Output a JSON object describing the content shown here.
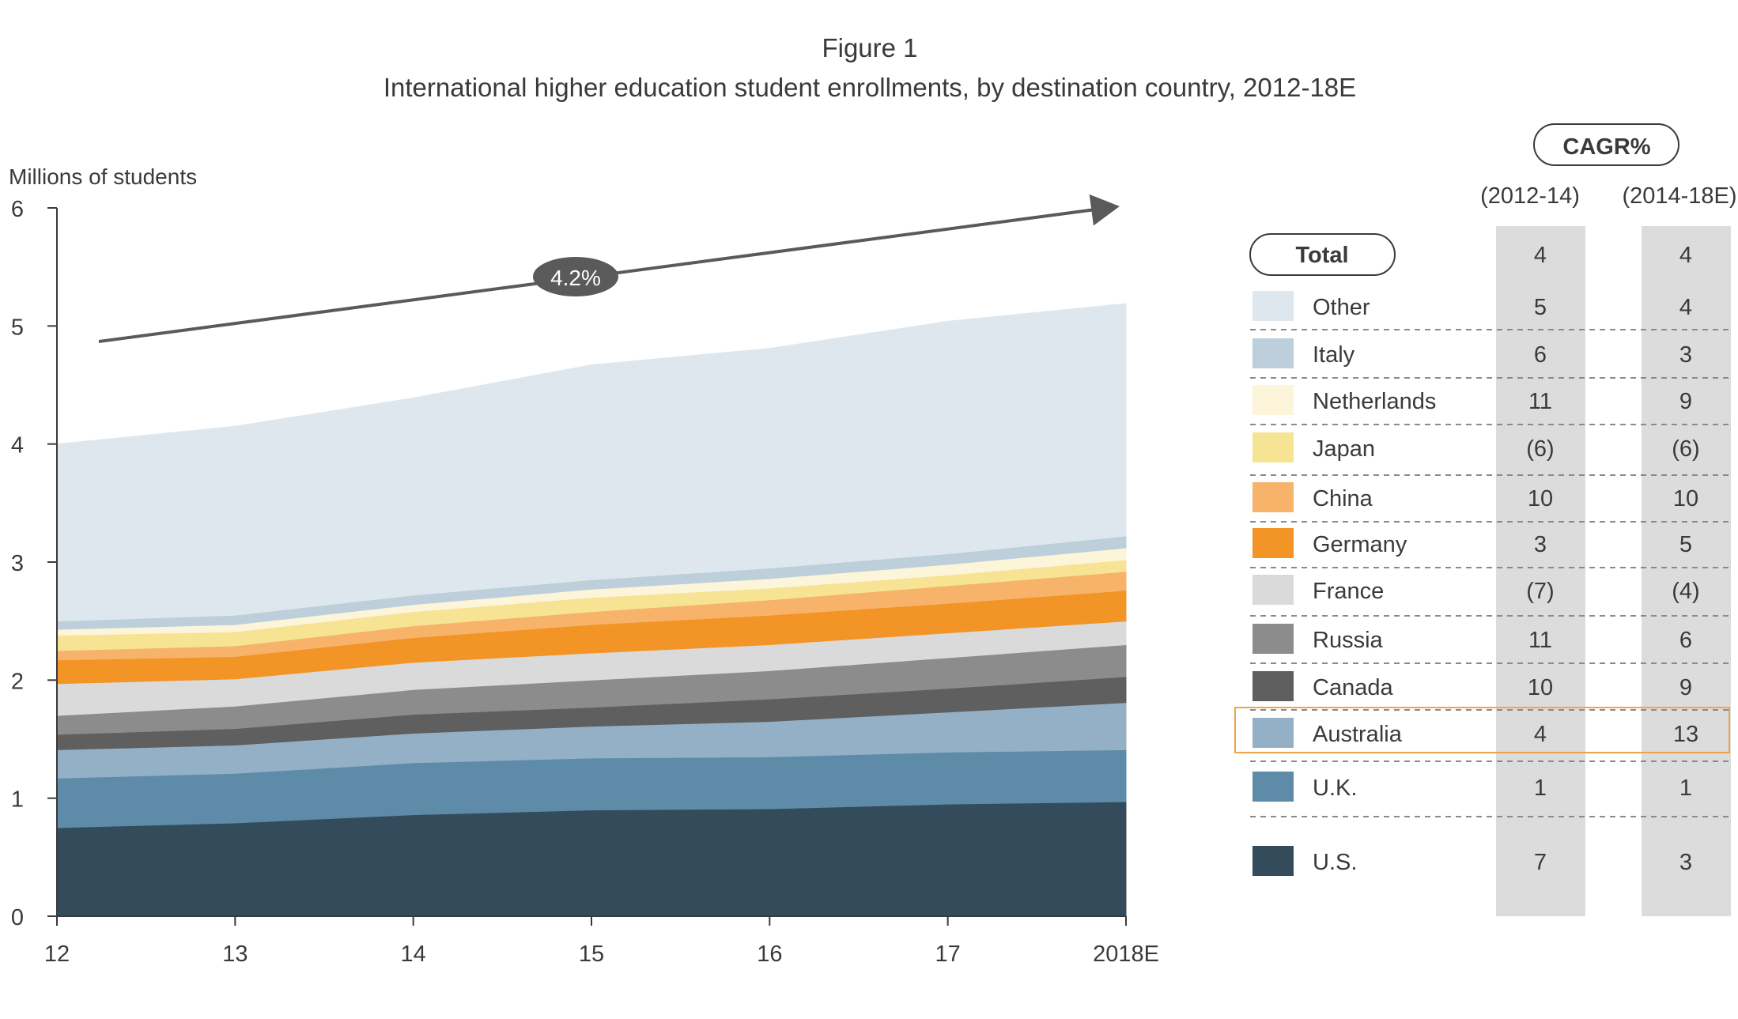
{
  "figure": {
    "label": "Figure 1",
    "title": "International higher education student enrollments, by destination country, 2012-18E"
  },
  "chart_data": {
    "type": "area",
    "stacked": true,
    "ylabel": "Millions of students",
    "xlabel": "",
    "ylim": [
      0,
      6
    ],
    "yticks": [
      "0",
      "1",
      "2",
      "3",
      "4",
      "5",
      "6"
    ],
    "categories": [
      "12",
      "13",
      "14",
      "15",
      "16",
      "17",
      "2018E"
    ],
    "grid": false,
    "growth_annotation": "4.2%",
    "series": [
      {
        "name": "U.S.",
        "color": "#344b5b",
        "values": [
          0.75,
          0.79,
          0.86,
          0.9,
          0.91,
          0.95,
          0.97
        ]
      },
      {
        "name": "U.K.",
        "color": "#5d8ba8",
        "values": [
          0.42,
          0.42,
          0.44,
          0.44,
          0.44,
          0.44,
          0.44
        ]
      },
      {
        "name": "Australia",
        "color": "#93b0c6",
        "values": [
          0.24,
          0.24,
          0.25,
          0.27,
          0.3,
          0.34,
          0.4
        ]
      },
      {
        "name": "Canada",
        "color": "#5f5f5f",
        "values": [
          0.13,
          0.14,
          0.16,
          0.16,
          0.19,
          0.2,
          0.22
        ]
      },
      {
        "name": "Russia",
        "color": "#8c8c8c",
        "values": [
          0.16,
          0.19,
          0.21,
          0.23,
          0.24,
          0.26,
          0.27
        ]
      },
      {
        "name": "France",
        "color": "#dadada",
        "values": [
          0.27,
          0.23,
          0.23,
          0.23,
          0.22,
          0.21,
          0.2
        ]
      },
      {
        "name": "Germany",
        "color": "#f39426",
        "values": [
          0.2,
          0.19,
          0.21,
          0.24,
          0.25,
          0.25,
          0.26
        ]
      },
      {
        "name": "China",
        "color": "#f7b36a",
        "values": [
          0.08,
          0.09,
          0.1,
          0.11,
          0.13,
          0.15,
          0.16
        ]
      },
      {
        "name": "Japan",
        "color": "#f7e394",
        "values": [
          0.13,
          0.12,
          0.12,
          0.12,
          0.1,
          0.09,
          0.1
        ]
      },
      {
        "name": "Netherlands",
        "color": "#fcf5da",
        "values": [
          0.05,
          0.06,
          0.06,
          0.07,
          0.08,
          0.09,
          0.1
        ]
      },
      {
        "name": "Italy",
        "color": "#bccfda",
        "values": [
          0.07,
          0.08,
          0.08,
          0.08,
          0.09,
          0.09,
          0.1
        ]
      },
      {
        "name": "Other",
        "color": "#dfe7ee",
        "values": [
          1.5,
          1.6,
          1.67,
          1.82,
          1.86,
          1.97,
          1.97
        ]
      }
    ]
  },
  "cagr_table": {
    "header": "CAGR%",
    "periods": [
      "(2012-14)",
      "(2014-18E)"
    ],
    "total": {
      "name": "Total",
      "values": [
        "4",
        "4"
      ]
    },
    "highlighted_row": "Australia",
    "highlight_color": "#f0a34e",
    "rows": [
      {
        "name": "Other",
        "color": "#dfe7ee",
        "values": [
          "5",
          "4"
        ]
      },
      {
        "name": "Italy",
        "color": "#bccfda",
        "values": [
          "6",
          "3"
        ]
      },
      {
        "name": "Netherlands",
        "color": "#fcf5da",
        "values": [
          "11",
          "9"
        ]
      },
      {
        "name": "Japan",
        "color": "#f7e394",
        "values": [
          "(6)",
          "(6)"
        ]
      },
      {
        "name": "China",
        "color": "#f7b36a",
        "values": [
          "10",
          "10"
        ]
      },
      {
        "name": "Germany",
        "color": "#f39426",
        "values": [
          "3",
          "5"
        ]
      },
      {
        "name": "France",
        "color": "#dadada",
        "values": [
          "(7)",
          "(4)"
        ]
      },
      {
        "name": "Russia",
        "color": "#8c8c8c",
        "values": [
          "11",
          "6"
        ]
      },
      {
        "name": "Canada",
        "color": "#5f5f5f",
        "values": [
          "10",
          "9"
        ]
      },
      {
        "name": "Australia",
        "color": "#93b0c6",
        "values": [
          "4",
          "13"
        ]
      },
      {
        "name": "U.K.",
        "color": "#5d8ba8",
        "values": [
          "1",
          "1"
        ]
      },
      {
        "name": "U.S.",
        "color": "#344b5b",
        "values": [
          "7",
          "3"
        ]
      }
    ]
  }
}
